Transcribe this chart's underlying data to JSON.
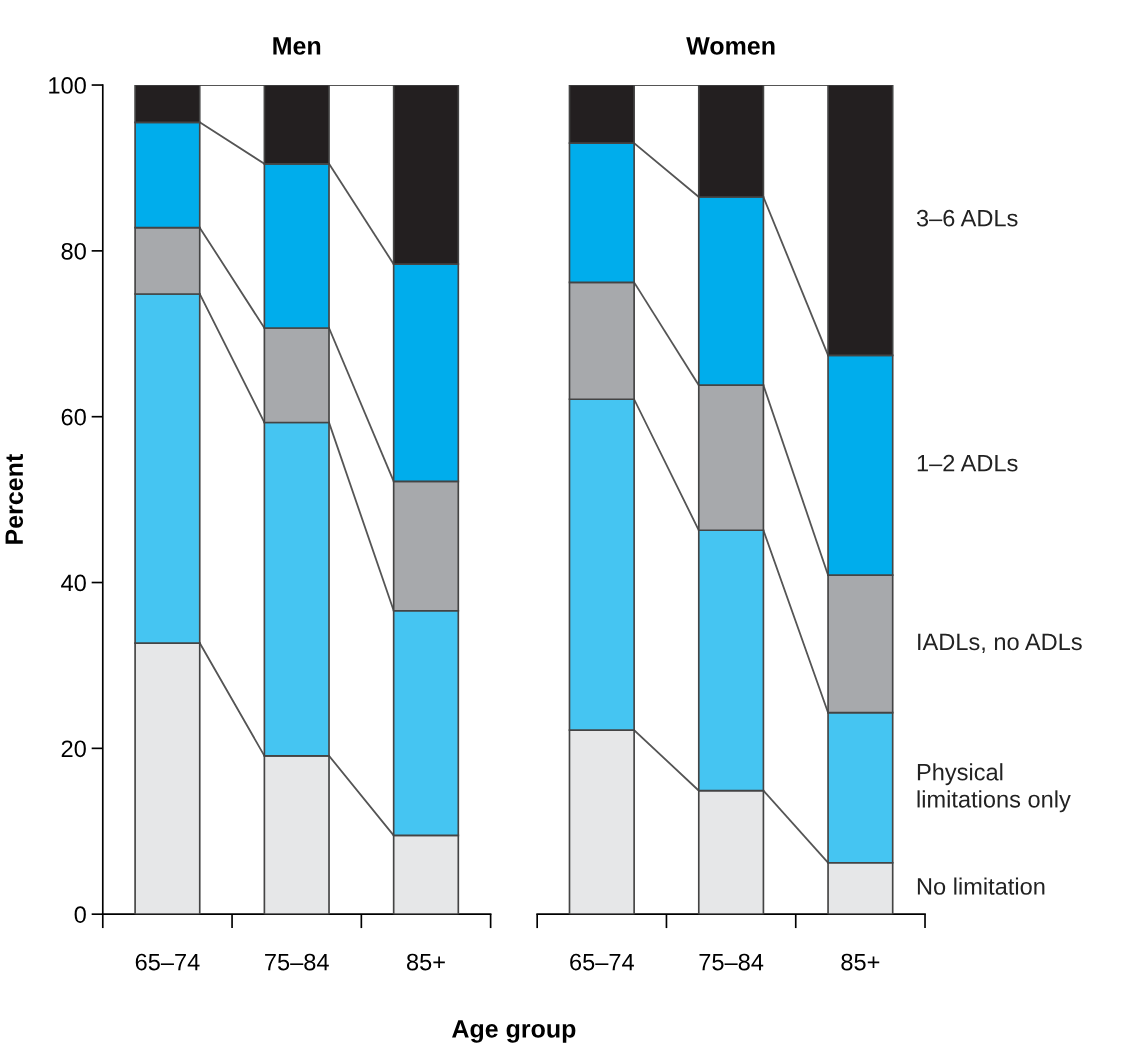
{
  "chart_data": [
    {
      "type": "bar",
      "stacked": true,
      "title": "Men",
      "ylabel": "Percent",
      "xlabel": "Age group",
      "categories": [
        "65–74",
        "75–84",
        "85+"
      ],
      "ylim": [
        0,
        100
      ],
      "yticks": [
        0,
        20,
        40,
        60,
        80,
        100
      ],
      "grid": false,
      "legend": false,
      "series": [
        {
          "color": "#e6e7e8",
          "values": [
            32.7,
            19.1,
            9.5
          ]
        },
        {
          "color": "#45c5f2",
          "values": [
            42.1,
            40.2,
            27.1
          ]
        },
        {
          "color": "#a7a9ac",
          "values": [
            8.0,
            11.4,
            15.6
          ]
        },
        {
          "color": "#00adec",
          "values": [
            12.7,
            19.8,
            26.2
          ]
        },
        {
          "color": "#231f20",
          "values": [
            4.5,
            9.5,
            21.6
          ]
        }
      ]
    },
    {
      "type": "bar",
      "stacked": true,
      "title": "Women",
      "categories": [
        "65–74",
        "75–84",
        "85+"
      ],
      "ylim": [
        0,
        100
      ],
      "tick_labels": "x",
      "grid": false,
      "legend": false,
      "series": [
        {
          "name": "No limitation",
          "color": "#e6e7e8",
          "values": [
            22.2,
            14.9,
            6.2
          ]
        },
        {
          "name": "Physical\nlimitations only",
          "color": "#45c5f2",
          "values": [
            39.9,
            31.4,
            18.1
          ]
        },
        {
          "name": "IADLs, no ADLs",
          "color": "#a7a9ac",
          "values": [
            14.1,
            17.5,
            16.6
          ]
        },
        {
          "name": "1–2 ADLs",
          "color": "#00adec",
          "values": [
            16.8,
            22.7,
            26.5
          ]
        },
        {
          "name": "3–6 ADLs",
          "color": "#231f20",
          "values": [
            7.0,
            13.5,
            32.6
          ]
        }
      ]
    }
  ]
}
